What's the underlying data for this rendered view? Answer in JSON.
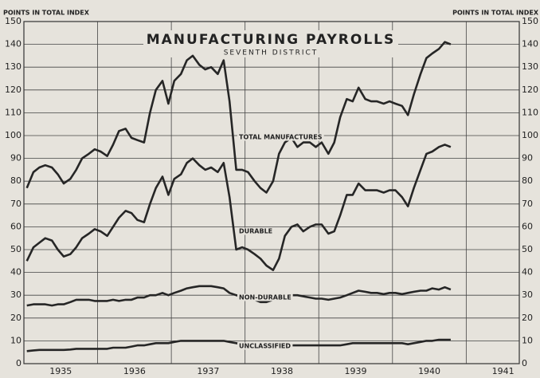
{
  "chart_data": {
    "type": "line",
    "title": "MANUFACTURING PAYROLLS",
    "subtitle": "SEVENTH DISTRICT",
    "ylabel": "POINTS IN TOTAL INDEX",
    "x": [
      1935.04,
      1935.13,
      1935.21,
      1935.29,
      1935.38,
      1935.46,
      1935.54,
      1935.63,
      1935.71,
      1935.79,
      1935.88,
      1935.96,
      1936.04,
      1936.13,
      1936.21,
      1936.29,
      1936.38,
      1936.46,
      1936.54,
      1936.63,
      1936.71,
      1936.79,
      1936.88,
      1936.96,
      1937.04,
      1937.13,
      1937.21,
      1937.29,
      1937.38,
      1937.46,
      1937.54,
      1937.63,
      1937.71,
      1937.79,
      1937.88,
      1937.96,
      1938.04,
      1938.13,
      1938.21,
      1938.29,
      1938.38,
      1938.46,
      1938.54,
      1938.63,
      1938.71,
      1938.79,
      1938.88,
      1938.96,
      1939.04,
      1939.13,
      1939.21,
      1939.29,
      1939.38,
      1939.46,
      1939.54,
      1939.63,
      1939.71,
      1939.79,
      1939.88,
      1939.96,
      1940.04,
      1940.13,
      1940.21,
      1940.29,
      1940.38,
      1940.46,
      1940.54,
      1940.63,
      1940.71,
      1940.79
    ],
    "series": [
      {
        "name": "TOTAL MANUFACTURES",
        "color": "#262626",
        "values": [
          77,
          84,
          86,
          87,
          86,
          83,
          79,
          81,
          85,
          90,
          92,
          94,
          93,
          91,
          96,
          102,
          103,
          99,
          98,
          97,
          110,
          120,
          124,
          114,
          124,
          127,
          133,
          135,
          131,
          129,
          130,
          127,
          133,
          115,
          85,
          85,
          84,
          80,
          77,
          75,
          80,
          92,
          97,
          99,
          95,
          97,
          97,
          95,
          97,
          92,
          97,
          108,
          116,
          115,
          121,
          116,
          115,
          115,
          114,
          115,
          114,
          113,
          109,
          118,
          127,
          134,
          136,
          138,
          141,
          140
        ]
      },
      {
        "name": "DURABLE",
        "color": "#262626",
        "values": [
          45,
          51,
          53,
          55,
          54,
          50,
          47,
          48,
          51,
          55,
          57,
          59,
          58,
          56,
          60,
          64,
          67,
          66,
          63,
          62,
          70,
          77,
          82,
          74,
          81,
          83,
          88,
          90,
          87,
          85,
          86,
          84,
          88,
          73,
          50,
          51,
          50,
          48,
          46,
          43,
          41,
          46,
          56,
          60,
          61,
          58,
          60,
          61,
          61,
          57,
          58,
          65,
          74,
          74,
          79,
          76,
          76,
          76,
          75,
          76,
          76,
          73,
          69,
          77,
          85,
          92,
          93,
          95,
          96,
          95
        ]
      },
      {
        "name": "NON-DURABLE",
        "color": "#262626",
        "values": [
          25.5,
          26,
          26,
          26,
          25.5,
          26,
          26,
          27,
          28,
          28,
          28,
          27.5,
          27.5,
          27.5,
          28,
          27.5,
          28,
          28,
          29,
          29,
          30,
          30,
          31,
          30,
          31,
          32,
          33,
          33.5,
          34,
          34,
          34,
          33.5,
          33,
          31,
          30,
          29.5,
          29,
          28,
          27,
          27,
          28,
          29,
          30,
          30,
          30,
          29.5,
          29,
          28.5,
          28.5,
          28,
          28.5,
          29,
          30,
          31,
          32,
          31.5,
          31,
          31,
          30.5,
          31,
          31,
          30.5,
          31,
          31.5,
          32,
          32,
          33,
          32.5,
          33.5,
          32.5
        ]
      },
      {
        "name": "UNCLASSIFIED",
        "color": "#262626",
        "values": [
          5.5,
          5.8,
          6,
          6,
          6,
          6,
          6,
          6.2,
          6.5,
          6.5,
          6.5,
          6.5,
          6.5,
          6.5,
          7,
          7,
          7,
          7.5,
          8,
          8,
          8.5,
          9,
          9,
          9,
          9.5,
          10,
          10,
          10,
          10,
          10,
          10,
          10,
          10,
          9.5,
          9,
          8.5,
          8,
          8,
          8,
          8,
          8,
          8,
          8,
          8,
          8,
          8,
          8,
          8,
          8,
          8,
          8,
          8,
          8.5,
          9,
          9,
          9,
          9,
          9,
          9,
          9,
          9,
          9,
          8.5,
          9,
          9.5,
          10,
          10,
          10.5,
          10.5,
          10.5
        ]
      }
    ],
    "xlim": [
      1935,
      1941.72
    ],
    "xticks": [
      {
        "value": 1935.5,
        "label": "1935"
      },
      {
        "value": 1936.5,
        "label": "1936"
      },
      {
        "value": 1937.5,
        "label": "1937"
      },
      {
        "value": 1938.5,
        "label": "1938"
      },
      {
        "value": 1939.5,
        "label": "1939"
      },
      {
        "value": 1940.5,
        "label": "1940"
      },
      {
        "value": 1941.5,
        "label": "1941"
      }
    ],
    "ylim": [
      0,
      150
    ],
    "yticks": [
      0,
      10,
      20,
      30,
      40,
      50,
      60,
      70,
      80,
      90,
      100,
      110,
      120,
      130,
      140,
      150
    ],
    "grid": true
  }
}
